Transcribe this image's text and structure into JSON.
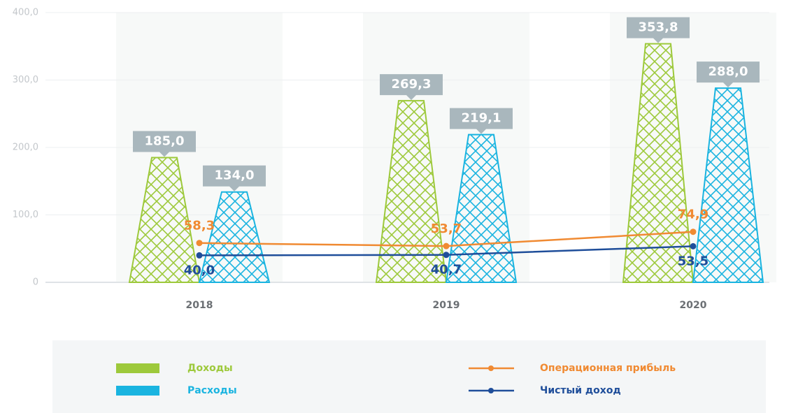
{
  "chart_data": {
    "type": "bar",
    "categories": [
      "2018",
      "2019",
      "2020"
    ],
    "ylim": [
      0,
      400
    ],
    "yticks": [
      0,
      {
        "value": 100,
        "label": "100,0"
      },
      {
        "value": 200,
        "label": "200,0"
      },
      {
        "value": 300,
        "label": "300,0"
      },
      {
        "value": 400,
        "label": "400,0"
      }
    ],
    "grid": true,
    "series": [
      {
        "name": "Доходы",
        "type": "bar",
        "color": "#9dc93b",
        "values": [
          185.0,
          269.3,
          353.8
        ],
        "value_labels": [
          "185,0",
          "269,3",
          "353,8"
        ]
      },
      {
        "name": "Расходы",
        "type": "bar",
        "color": "#1ab4e0",
        "values": [
          134.0,
          219.1,
          288.0
        ],
        "value_labels": [
          "134,0",
          "219,1",
          "288,0"
        ]
      },
      {
        "name": "Операционная прибыль",
        "type": "line",
        "color": "#f08a32",
        "values": [
          58.3,
          53.7,
          74.9
        ],
        "value_labels": [
          "58,3",
          "53,7",
          "74,9"
        ]
      },
      {
        "name": "Чистый доход",
        "type": "line",
        "color": "#1f4e9a",
        "values": [
          40.0,
          40.7,
          53.5
        ],
        "value_labels": [
          "40,0",
          "40,7",
          "53,5"
        ]
      }
    ]
  }
}
